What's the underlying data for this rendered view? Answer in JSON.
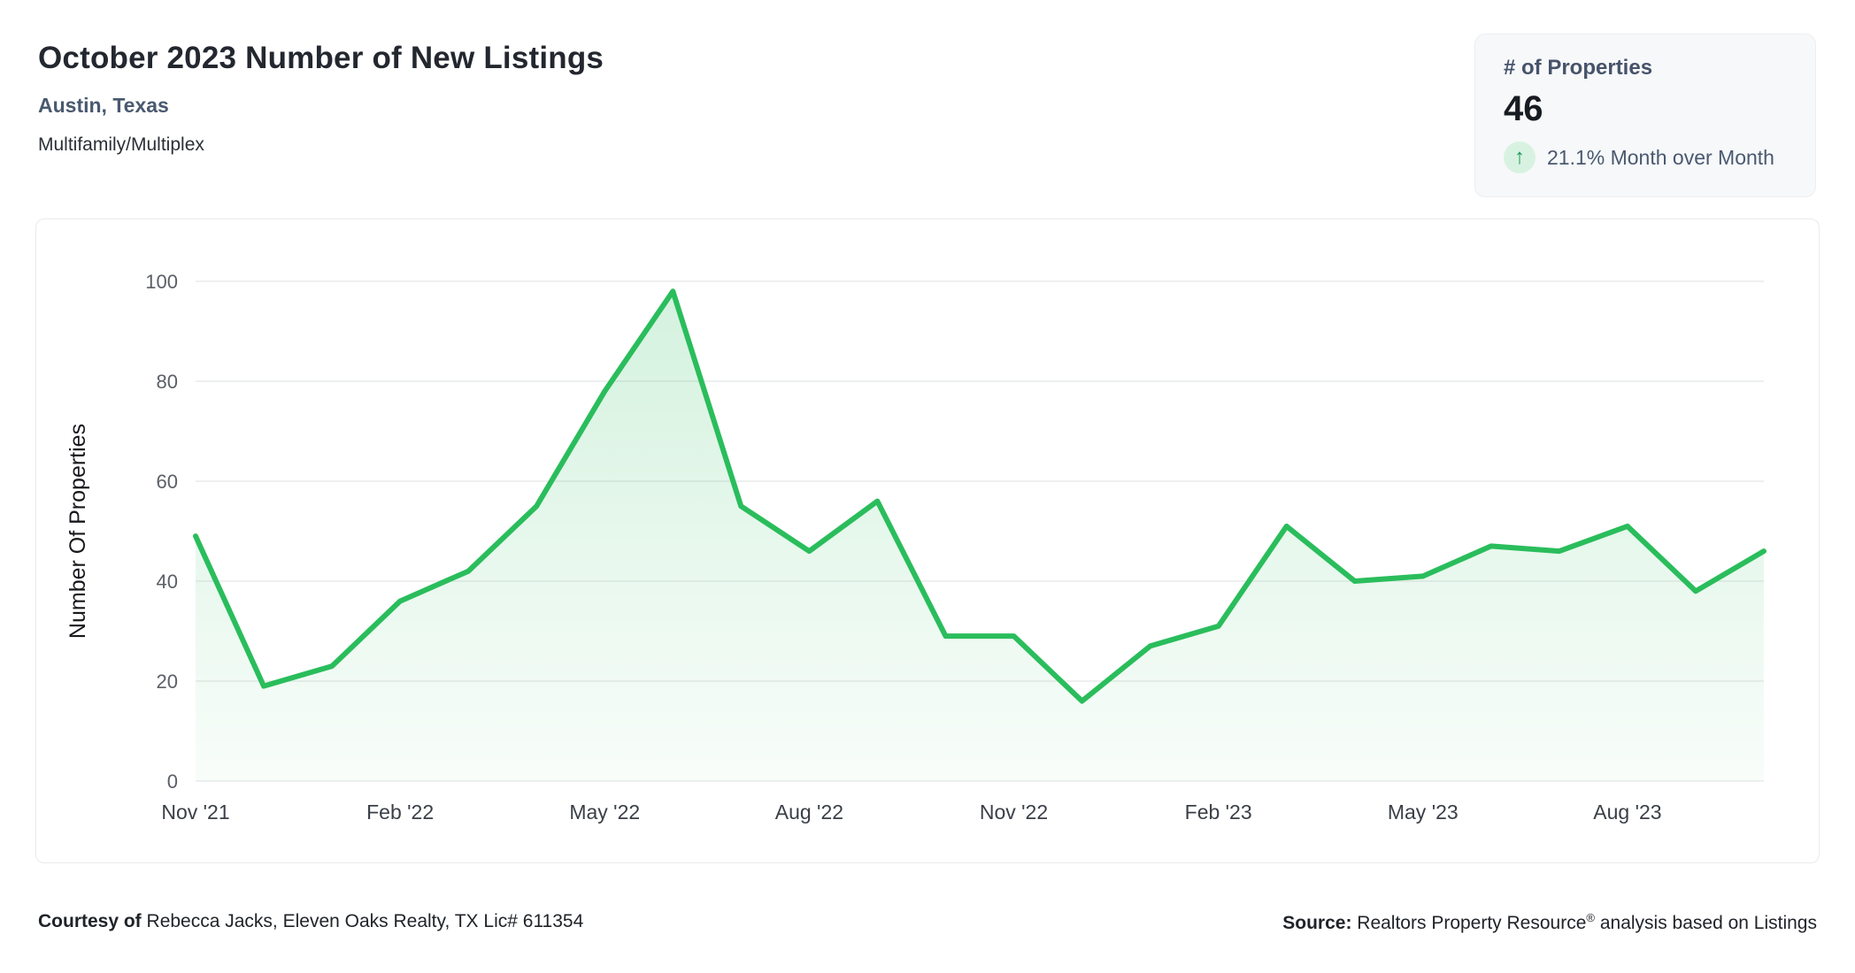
{
  "header": {
    "title": "October 2023 Number of New Listings",
    "location": "Austin, Texas",
    "property_type": "Multifamily/Multiplex"
  },
  "stat_card": {
    "label": "# of Properties",
    "value": "46",
    "arrow_glyph": "↑",
    "change_text": "21.1% Month over Month",
    "direction": "up"
  },
  "footer": {
    "courtesy_label": "Courtesy of",
    "courtesy_text": " Rebecca Jacks, Eleven Oaks Realty, TX Lic# 611354",
    "source_label": "Source:",
    "source_text_before_reg": " Realtors Property Resource",
    "reg_mark": "®",
    "source_text_after_reg": " analysis based on Listings"
  },
  "colors": {
    "line": "#2abd5c",
    "area_top": "rgba(42,189,92,0.20)",
    "area_bottom": "rgba(42,189,92,0.03)",
    "grid": "#e9eaec",
    "y_tick_text": "#5b5f66",
    "x_tick_text": "#3a3f47",
    "axis_title_text": "#16181c",
    "up_badge_bg": "#d8f2e2",
    "up_badge_arrow": "#1a9c53"
  },
  "chart_data": {
    "type": "area",
    "title": "October 2023 Number of New Listings",
    "subtitle": "Austin, Texas",
    "series_name": "Number of New Listings",
    "xlabel": "",
    "ylabel": "Number Of Properties",
    "ylim": [
      0,
      100
    ],
    "yticks": [
      0,
      20,
      40,
      60,
      80,
      100
    ],
    "grid": "horizontal",
    "legend": "none",
    "x_tick_labels": [
      "Nov '21",
      "Feb '22",
      "May '22",
      "Aug '22",
      "Nov '22",
      "Feb '23",
      "May '23",
      "Aug '23"
    ],
    "x_tick_step": 3,
    "categories": [
      "Nov '21",
      "Dec '21",
      "Jan '22",
      "Feb '22",
      "Mar '22",
      "Apr '22",
      "May '22",
      "Jun '22",
      "Jul '22",
      "Aug '22",
      "Sep '22",
      "Oct '22",
      "Nov '22",
      "Dec '22",
      "Jan '23",
      "Feb '23",
      "Mar '23",
      "Apr '23",
      "May '23",
      "Jun '23",
      "Jul '23",
      "Aug '23",
      "Sep '23",
      "Oct '23"
    ],
    "values": [
      49,
      19,
      23,
      36,
      42,
      55,
      78,
      98,
      55,
      46,
      56,
      29,
      29,
      16,
      27,
      31,
      51,
      40,
      41,
      47,
      46,
      51,
      38,
      46
    ]
  }
}
